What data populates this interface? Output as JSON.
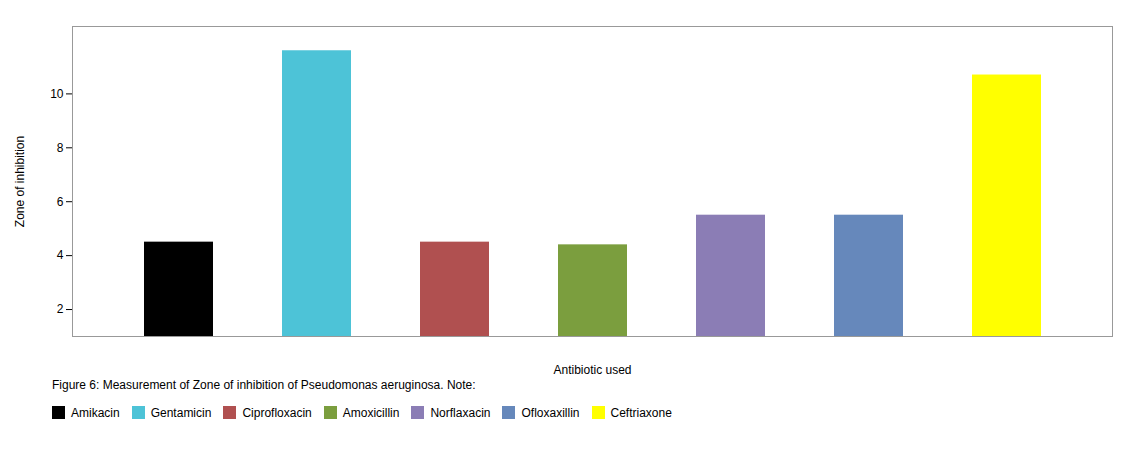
{
  "chart_data": {
    "type": "bar",
    "caption": "Figure 6: Measurement of Zone of inhibition of Pseudomonas aeruginosa. Note:",
    "categories": [
      "Amikacin",
      "Gentamicin",
      "Ciprofloxacin",
      "Amoxicillin",
      "Norflaxacin",
      "Ofloxaxillin",
      "Ceftriaxone"
    ],
    "values": [
      4.5,
      11.6,
      4.5,
      4.4,
      5.5,
      5.5,
      10.7
    ],
    "colors": [
      "#000000",
      "#4DC3D7",
      "#B05050",
      "#7B9E3E",
      "#8B7DB5",
      "#6688BB",
      "#FFFF00"
    ],
    "xlabel": "Antibiotic used",
    "ylabel": "Zone of inhibition",
    "ylim": [
      1,
      12.5
    ],
    "yticks": [
      2,
      4,
      6,
      8,
      10
    ],
    "tick_labels": "y",
    "legend": "bottom",
    "grid": false
  }
}
